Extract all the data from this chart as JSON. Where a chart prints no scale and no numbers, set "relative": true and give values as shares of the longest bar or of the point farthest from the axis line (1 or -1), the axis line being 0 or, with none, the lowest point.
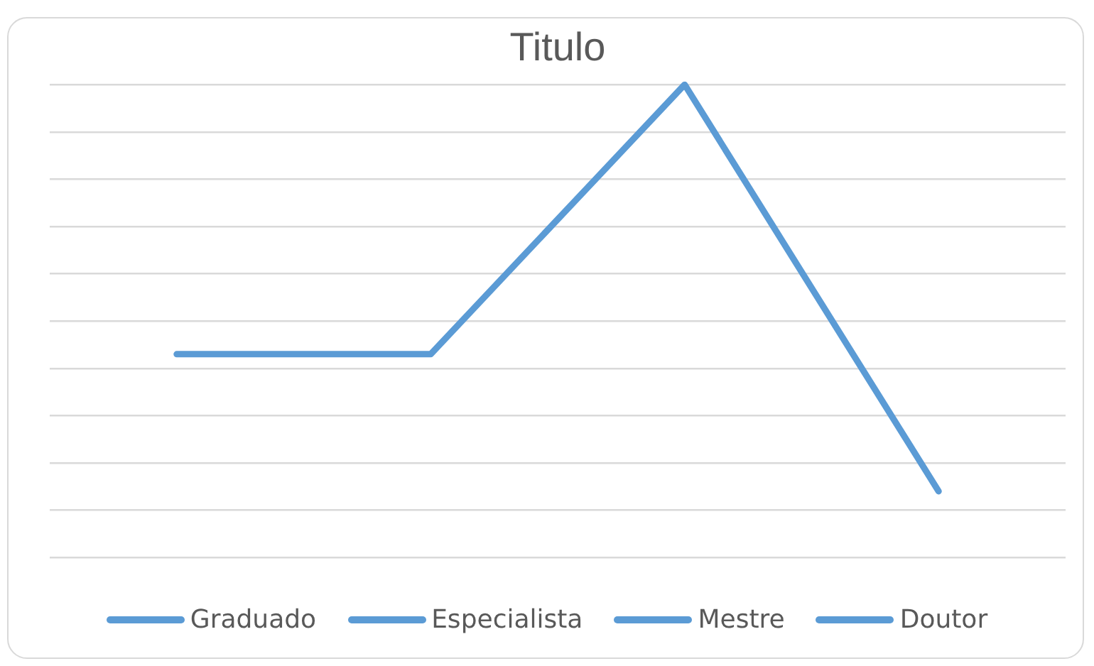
{
  "chart_data": {
    "type": "line",
    "title": "Titulo",
    "categories": [
      null,
      null,
      null,
      null
    ],
    "series": [
      {
        "color": "#5b9bd5",
        "values": [
          0.43,
          0.43,
          1,
          0.14
        ]
      }
    ],
    "relative": true,
    "grid": "y",
    "marker": "none",
    "line_style": "solid",
    "annotations": [
      "Graduado",
      "Especialista",
      "Mestre",
      "Doutor"
    ]
  }
}
